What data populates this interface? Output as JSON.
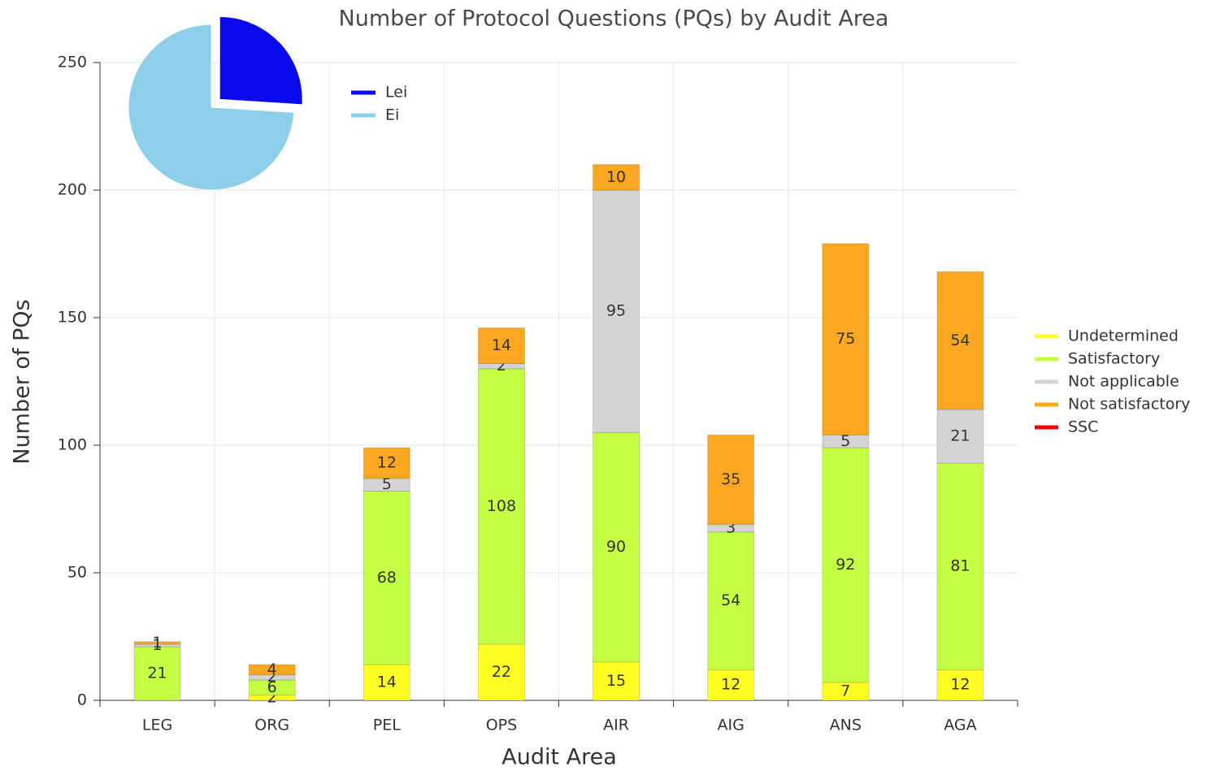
{
  "chart_data": [
    {
      "type": "bar",
      "stacked": true,
      "title": "Number of Protocol Questions (PQs) by Audit Area",
      "x_label": "Audit Area",
      "y_label": "Number of PQs",
      "categories": [
        "LEG",
        "ORG",
        "PEL",
        "OPS",
        "AIR",
        "AIG",
        "ANS",
        "AGA"
      ],
      "series": [
        {
          "name": "Undetermined",
          "color": "#ffff22",
          "values": [
            0,
            2,
            14,
            22,
            15,
            12,
            7,
            12
          ]
        },
        {
          "name": "Satisfactory",
          "color": "#c4ff44",
          "values": [
            21,
            6,
            68,
            108,
            90,
            54,
            92,
            81
          ]
        },
        {
          "name": "Not applicable",
          "color": "#d4d4d4",
          "values": [
            1,
            2,
            5,
            2,
            95,
            3,
            5,
            21
          ]
        },
        {
          "name": "Not satisfactory",
          "color": "#fba820",
          "values": [
            1,
            4,
            12,
            14,
            10,
            35,
            75,
            54
          ]
        },
        {
          "name": "SSC",
          "color": "#ff0000",
          "values": [
            0,
            0,
            0,
            0,
            0,
            0,
            0,
            0
          ]
        }
      ],
      "ylim": [
        0,
        250
      ],
      "yticks": [
        0,
        50,
        100,
        150,
        200,
        250
      ],
      "grid": true,
      "legend": "right"
    },
    {
      "type": "pie",
      "labels": [
        "Lei",
        "Ei"
      ],
      "values": [
        26,
        74
      ],
      "colors": [
        "#0a0aee",
        "#8dcfea"
      ],
      "exploded": [
        true,
        false
      ],
      "legend": "right"
    }
  ]
}
